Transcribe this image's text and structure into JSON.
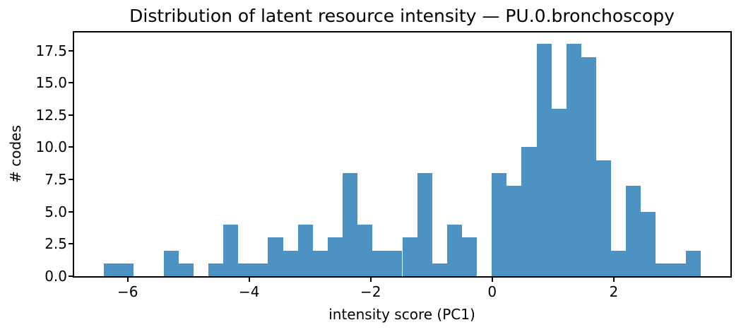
{
  "chart_data": {
    "type": "bar",
    "subtype": "histogram",
    "title": "Distribution of latent resource intensity — PU.0.bronchoscopy",
    "xlabel": "intensity score (PC1)",
    "ylabel": "# codes",
    "bar_color": "#4C92C3",
    "axis_color": "#000000",
    "grid": false,
    "legend_position": "none",
    "xlim": [
      -6.88,
      3.92
    ],
    "ylim": [
      0,
      18.9
    ],
    "xticks": {
      "values": [
        -6,
        -4,
        -2,
        0,
        2
      ],
      "labels": [
        "−6",
        "−4",
        "−2",
        "0",
        "2"
      ]
    },
    "yticks": {
      "values": [
        0,
        2.5,
        5,
        7.5,
        10,
        12.5,
        15,
        17.5
      ],
      "labels": [
        "0.0",
        "2.5",
        "5.0",
        "7.5",
        "10.0",
        "12.5",
        "15.0",
        "17.5"
      ]
    },
    "bins": {
      "start": -6.39,
      "width": 0.2455,
      "count": 40
    },
    "counts": [
      1,
      1,
      0,
      0,
      2,
      1,
      0,
      1,
      4,
      1,
      1,
      3,
      2,
      4,
      2,
      3,
      8,
      4,
      2,
      2,
      3,
      8,
      1,
      4,
      3,
      0,
      8,
      7,
      10,
      18,
      13,
      18,
      17,
      9,
      2,
      7,
      5,
      1,
      1,
      2
    ]
  }
}
